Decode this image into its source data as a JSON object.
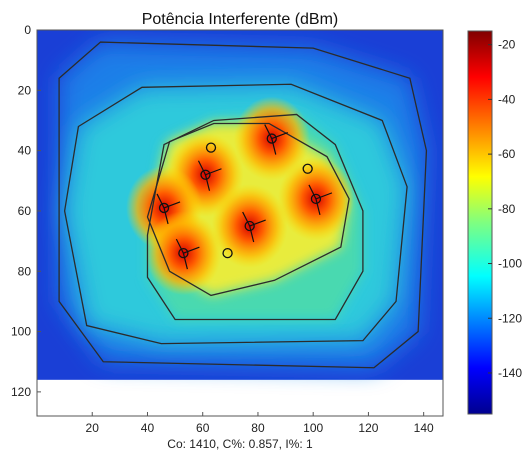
{
  "chart_data": {
    "type": "heatmap",
    "title": "Potência Interferente (dBm)",
    "footer": "Co: 1410, C%: 0.857, I%: 1",
    "xlim": [
      0,
      147
    ],
    "ylim": [
      128,
      0
    ],
    "xticks": [
      20,
      40,
      60,
      80,
      100,
      120,
      140
    ],
    "yticks": [
      0,
      20,
      40,
      60,
      80,
      100,
      120
    ],
    "colorbar": {
      "range": [
        -155,
        -15
      ],
      "ticks": [
        -20,
        -40,
        -60,
        -80,
        -100,
        -120,
        -140
      ],
      "colormap": "jet"
    },
    "grid": false,
    "field_extent": {
      "x": [
        0,
        147
      ],
      "y": [
        0,
        116
      ]
    },
    "colors": {
      "background": "#1a3fd6",
      "outer_field": "#1e7ee8",
      "mid_field": "#2ec9dc",
      "inner_field": "#49d9b0",
      "hot_region": "#e8ec3c",
      "contour": "#2b2b2b"
    },
    "contours": [
      {
        "name": "outer",
        "points": [
          [
            8,
            16
          ],
          [
            23,
            4
          ],
          [
            100,
            6
          ],
          [
            135,
            16
          ],
          [
            141,
            40
          ],
          [
            138,
            100
          ],
          [
            122,
            112
          ],
          [
            24,
            110
          ],
          [
            8,
            90
          ]
        ]
      },
      {
        "name": "second",
        "points": [
          [
            15,
            32
          ],
          [
            38,
            19
          ],
          [
            92,
            18
          ],
          [
            125,
            30
          ],
          [
            134,
            52
          ],
          [
            130,
            90
          ],
          [
            118,
            103
          ],
          [
            45,
            104
          ],
          [
            18,
            98
          ],
          [
            10,
            60
          ]
        ]
      },
      {
        "name": "third",
        "points": [
          [
            40,
            68
          ],
          [
            46,
            38
          ],
          [
            64,
            30
          ],
          [
            94,
            28
          ],
          [
            108,
            38
          ],
          [
            118,
            60
          ],
          [
            118,
            80
          ],
          [
            108,
            96
          ],
          [
            50,
            96
          ],
          [
            40,
            82
          ]
        ]
      },
      {
        "name": "inner",
        "points": [
          [
            40,
            62
          ],
          [
            48,
            37
          ],
          [
            64,
            31
          ],
          [
            84,
            31
          ],
          [
            105,
            42
          ],
          [
            113,
            56
          ],
          [
            110,
            72
          ],
          [
            86,
            83
          ],
          [
            63,
            88
          ],
          [
            48,
            80
          ]
        ]
      }
    ],
    "transmitters": [
      {
        "x": 85,
        "y": 36,
        "interference": -25
      },
      {
        "x": 61,
        "y": 48,
        "interference": -35
      },
      {
        "x": 46,
        "y": 59,
        "interference": -30
      },
      {
        "x": 101,
        "y": 56,
        "interference": -28
      },
      {
        "x": 77,
        "y": 65,
        "interference": -30
      },
      {
        "x": 53,
        "y": 74,
        "interference": -32
      }
    ],
    "receivers": [
      {
        "x": 63,
        "y": 39
      },
      {
        "x": 98,
        "y": 46
      },
      {
        "x": 69,
        "y": 74
      }
    ]
  }
}
